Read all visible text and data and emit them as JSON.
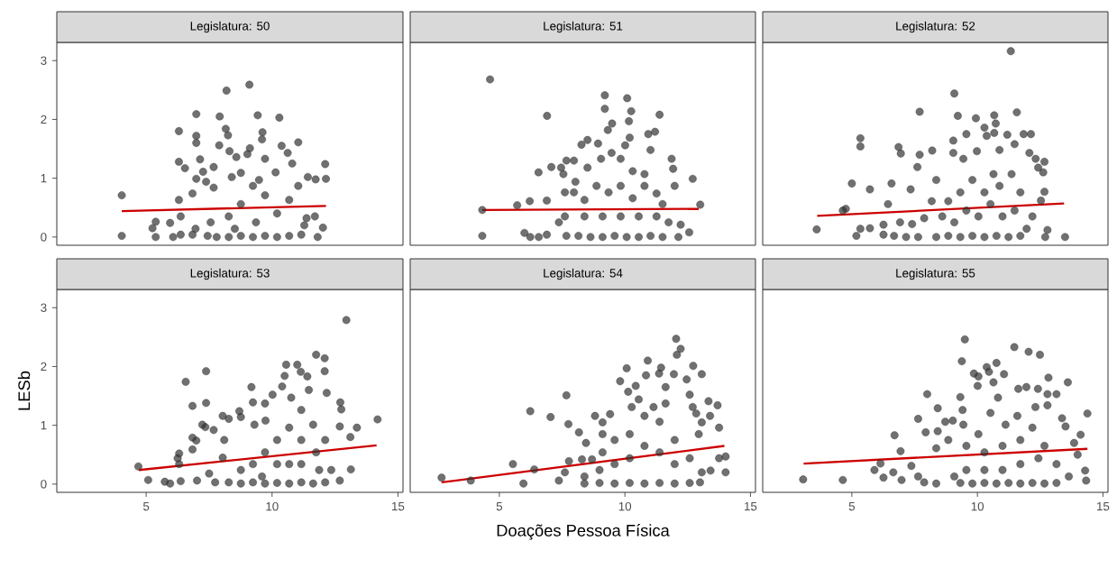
{
  "chart_data": [
    {
      "type": "scatter",
      "title": "Legislatura: 50",
      "xlim": [
        1.45,
        15.2
      ],
      "ylim": [
        -0.14,
        3.31
      ],
      "xticks": [
        5,
        10,
        15
      ],
      "yticks": [
        0,
        1,
        2,
        3
      ],
      "tick_labels": "y",
      "series": [
        {
          "type": "scatter",
          "marker": "circle",
          "color": "#333333",
          "x": [
            4.03,
            4.03,
            5.38,
            5.38,
            5.25,
            5.95,
            6.07,
            6.3,
            6.3,
            6.3,
            6.54,
            6.37,
            6.99,
            6.99,
            6.99,
            6.99,
            6.84,
            7.14,
            7.26,
            7.38,
            7.68,
            7.68,
            7.92,
            7.9,
            8.19,
            8.16,
            8.25,
            8.31,
            8.58,
            8.4,
            8.76,
            9.1,
            9.02,
            9.12,
            9.43,
            9.62,
            9.6,
            9.72,
            9.48,
            10.14,
            10.29,
            10.38,
            10.62,
            11.04,
            10.8,
            11.42,
            11.73,
            12.11,
            12.14,
            12.02,
            11.81,
            11.7,
            11.37,
            11.04,
            10.68,
            10.2,
            9.72,
            9.24,
            8.76,
            8.28,
            7.56,
            6.96,
            7.44,
            7.8,
            8.28,
            8.76,
            9.24,
            9.72,
            10.2,
            10.68,
            11.16,
            11.28,
            9.36,
            8.52,
            6.84,
            6.37
          ],
          "values": [
            0.71,
            0.02,
            0.26,
            0,
            0.15,
            0.24,
            0,
            1.8,
            1.28,
            0.63,
            1.17,
            0.35,
            2.09,
            1.72,
            1.6,
            0.99,
            0.74,
            1.32,
            1.11,
            0.94,
            1.19,
            0.84,
            2.05,
            1.56,
            2.49,
            1.84,
            1.73,
            1.46,
            1.36,
            1.02,
            1.09,
            2.59,
            1.41,
            1.51,
            2.07,
            1.78,
            1.66,
            1.33,
            0.97,
            1.1,
            2.03,
            1.55,
            1.43,
            1.61,
            1.25,
            1.02,
            0.98,
            1.24,
            0.99,
            0.16,
            0,
            0.35,
            0.32,
            0.87,
            0.63,
            0.4,
            0.71,
            0.87,
            0.56,
            0.35,
            0.25,
            0.14,
            0.02,
            0,
            0,
            0.02,
            0,
            0.02,
            0,
            0.02,
            0.04,
            0.2,
            0.25,
            0.14,
            0.04,
            0.04
          ]
        },
        {
          "type": "line",
          "color": "#cc0000",
          "x": [
            4.03,
            12.14
          ],
          "values": [
            0.44,
            0.53
          ]
        }
      ]
    },
    {
      "type": "scatter",
      "title": "Legislatura: 51",
      "xlim": [
        1.45,
        15.2
      ],
      "ylim": [
        -0.14,
        3.31
      ],
      "xticks": [
        5,
        10,
        15
      ],
      "yticks": [
        0,
        1,
        2,
        3
      ],
      "tick_labels": false,
      "series": [
        {
          "type": "scatter",
          "marker": "circle",
          "color": "#333333",
          "x": [
            4.63,
            4.32,
            4.32,
            6.9,
            6.56,
            5.71,
            6.21,
            6.0,
            6.23,
            6.89,
            7.07,
            7.46,
            7.67,
            7.97,
            8.27,
            8.51,
            8.93,
            9.2,
            9.2,
            9.49,
            9.32,
            10.09,
            10.25,
            10.16,
            10.19,
            10.01,
            11.38,
            11.2,
            10.93,
            11.02,
            11.86,
            11.92,
            12.7,
            13.0,
            12.56,
            12.13,
            12.22,
            11.74,
            11.98,
            11.5,
            11.26,
            10.78,
            10.31,
            9.83,
            9.47,
            9.05,
            8.51,
            8.03,
            7.61,
            7.55,
            7.97,
            8.39,
            8.87,
            9.35,
            9.83,
            10.31,
            10.78,
            11.26,
            10.55,
            9.83,
            9.11,
            8.39,
            7.61,
            7.37,
            7.67,
            8.15,
            8.63,
            9.11,
            9.59,
            10.07,
            10.55,
            11.02,
            11.5,
            6.57,
            6.89
          ],
          "values": [
            2.68,
            0.46,
            0.02,
            2.06,
            1.1,
            0.54,
            0.61,
            0.07,
            0,
            0.62,
            1.19,
            1.18,
            1.3,
            1.3,
            1.57,
            1.65,
            1.59,
            2.41,
            2.18,
            1.93,
            1.82,
            2.36,
            2.14,
            1.97,
            1.69,
            1.56,
            2.08,
            1.79,
            1.75,
            1.48,
            1.33,
            1.16,
            0.99,
            0.55,
            0.08,
            0,
            0.21,
            0.25,
            0.87,
            0.56,
            0.74,
            1.07,
            1.12,
            1.33,
            1.43,
            1.33,
            1.18,
            0.94,
            0.76,
            1.07,
            0.76,
            0.63,
            0.87,
            0.76,
            0.87,
            0.66,
            0.87,
            0.35,
            0.35,
            0.35,
            0.35,
            0.35,
            0.35,
            0.25,
            0.02,
            0.02,
            0,
            0,
            0.02,
            0,
            0,
            0.02,
            0,
            0,
            0.04
          ]
        },
        {
          "type": "line",
          "color": "#cc0000",
          "x": [
            4.32,
            12.94
          ],
          "values": [
            0.46,
            0.48
          ]
        }
      ]
    },
    {
      "type": "scatter",
      "title": "Legislatura: 52",
      "xlim": [
        1.45,
        15.2
      ],
      "ylim": [
        -0.14,
        3.31
      ],
      "xticks": [
        5,
        10,
        15
      ],
      "yticks": [
        0,
        1,
        2,
        3
      ],
      "tick_labels": false,
      "series": [
        {
          "type": "scatter",
          "marker": "circle",
          "color": "#333333",
          "x": [
            3.6,
            4.76,
            4.64,
            5.0,
            5.34,
            5.34,
            5.72,
            5.18,
            5.34,
            5.72,
            6.26,
            6.26,
            6.44,
            6.58,
            6.86,
            6.95,
            7.34,
            7.7,
            7.7,
            7.61,
            8.2,
            7.4,
            7.64,
            7.88,
            8.36,
            8.18,
            9.08,
            9.04,
            9.04,
            9.22,
            9.56,
            9.44,
            9.94,
            10.28,
            10.37,
            9.98,
            10.67,
            10.73,
            10.67,
            10.88,
            11.19,
            11.33,
            11.57,
            11.48,
            11.84,
            12.13,
            12.07,
            12.32,
            12.67,
            12.42,
            12.62,
            12.67,
            12.53,
            12.79,
            13.49,
            12.7,
            12.19,
            11.71,
            11.36,
            10.88,
            10.64,
            10.28,
            9.8,
            9.32,
            8.84,
            8.6,
            9.08,
            9.56,
            10.04,
            10.52,
            11.0,
            11.48,
            11.96,
            8.36,
            8.84,
            9.32,
            9.8,
            10.28,
            10.76,
            11.24,
            11.71,
            6.68,
            7.16,
            6.92
          ],
          "values": [
            0.13,
            0.48,
            0.45,
            0.91,
            1.68,
            1.54,
            0.81,
            0.02,
            0.14,
            0.15,
            0.21,
            0.04,
            0.56,
            0.91,
            1.53,
            1.42,
            0.81,
            2.13,
            1.4,
            1.19,
            1.47,
            0.22,
            0,
            0.32,
            0.97,
            0.61,
            2.44,
            1.64,
            1.43,
            2.06,
            1.75,
            1.33,
            2.02,
            1.86,
            1.72,
            1.46,
            2.07,
            1.93,
            1.77,
            1.48,
            1.74,
            3.16,
            2.12,
            1.58,
            1.75,
            1.75,
            1.43,
            1.33,
            1.28,
            1.18,
            1.1,
            0.77,
            0.62,
            0.12,
            0,
            0,
            0.35,
            0.76,
            1.07,
            0.87,
            1.07,
            0.76,
            0.97,
            0.76,
            0.61,
            0.35,
            0.25,
            0.45,
            0.35,
            0.56,
            0.35,
            0.45,
            0.14,
            0,
            0.02,
            0,
            0.02,
            0,
            0.02,
            0,
            0.02,
            0.02,
            0,
            0.25
          ]
        },
        {
          "type": "line",
          "color": "#cc0000",
          "x": [
            3.62,
            13.45
          ],
          "values": [
            0.36,
            0.57
          ]
        }
      ]
    },
    {
      "type": "scatter",
      "title": "Legislatura: 53",
      "ylabel": "LESb",
      "xlim": [
        1.45,
        15.2
      ],
      "ylim": [
        -0.14,
        3.31
      ],
      "xticks": [
        5,
        10,
        15
      ],
      "yticks": [
        0,
        1,
        2,
        3
      ],
      "series": [
        {
          "type": "scatter",
          "marker": "circle",
          "color": "#333333",
          "x": [
            4.69,
            5.08,
            5.74,
            5.95,
            6.37,
            6.31,
            6.31,
            6.25,
            6.57,
            6.84,
            6.84,
            6.84,
            6.99,
            7.02,
            7.23,
            7.38,
            7.38,
            7.35,
            7.68,
            7.5,
            7.74,
            8.04,
            8.1,
            8.04,
            8.28,
            8.7,
            8.76,
            9.18,
            9.24,
            9.3,
            9.72,
            9.74,
            10.02,
            10.4,
            10.56,
            10.5,
            11.0,
            10.76,
            11.14,
            11.4,
            11.46,
            11.75,
            12.09,
            12.09,
            12.17,
            12.95,
            12.71,
            12.75,
            12.69,
            13.37,
            13.11,
            14.19,
            13.13,
            12.69,
            12.35,
            12.11,
            11.63,
            11.16,
            11.75,
            11.16,
            10.68,
            10.2,
            9.72,
            9.24,
            8.76,
            10.68,
            11.16,
            11.87,
            10.2,
            8.28,
            8.76,
            9.24,
            9.72,
            10.2,
            10.68,
            11.16,
            11.63,
            12.11,
            9.6
          ],
          "values": [
            0.3,
            0.07,
            0.04,
            0.01,
            0.05,
            0.52,
            0.34,
            0.44,
            1.74,
            1.33,
            0.79,
            0.59,
            0.74,
            0.06,
            1.01,
            1.92,
            1.38,
            0.97,
            0.92,
            0.18,
            0.03,
            1.16,
            0.75,
            0.45,
            1.11,
            1.24,
            1.14,
            1.65,
            1.39,
            1.01,
            1.37,
            1.08,
            1.52,
            1.66,
            2.03,
            1.84,
            2.03,
            1.47,
            1.91,
            1.83,
            1.6,
            2.2,
            2.14,
            1.92,
            1.55,
            2.79,
            1.39,
            1.27,
            0.98,
            0.96,
            0.8,
            1.1,
            0.25,
            0.06,
            0.24,
            0.75,
            1.01,
            1.26,
            0.54,
            0.75,
            0.96,
            0.75,
            0.54,
            0.34,
            0.24,
            0.34,
            0.34,
            0.24,
            0.34,
            0.03,
            0.01,
            0.03,
            0.01,
            0.02,
            0.01,
            0.03,
            0.01,
            0.03,
            0.13
          ]
        },
        {
          "type": "line",
          "color": "#cc0000",
          "x": [
            4.71,
            14.15
          ],
          "values": [
            0.24,
            0.66
          ]
        }
      ]
    },
    {
      "type": "scatter",
      "title": "Legislatura: 54",
      "xlabel": "Doações Pessoa Física",
      "xlim": [
        1.45,
        15.2
      ],
      "ylim": [
        -0.14,
        3.31
      ],
      "xticks": [
        5,
        10,
        15
      ],
      "yticks": [
        0,
        1,
        2,
        3
      ],
      "tick_labels": "x",
      "series": [
        {
          "type": "scatter",
          "marker": "circle",
          "color": "#333333",
          "x": [
            2.7,
            3.86,
            5.54,
            5.96,
            6.23,
            6.39,
            7.04,
            7.37,
            7.67,
            7.75,
            7.61,
            7.77,
            8.17,
            8.45,
            8.29,
            8.69,
            8.81,
            9.11,
            9.11,
            9.41,
            9.81,
            10.07,
            10.13,
            10.27,
            10.43,
            10.55,
            10.91,
            10.84,
            11.14,
            11.44,
            11.36,
            11.62,
            11.62,
            11.95,
            12.04,
            12.22,
            12.07,
            12.46,
            12.72,
            13.06,
            12.58,
            12.7,
            12.84,
            13.06,
            13.33,
            13.69,
            13.39,
            12.94,
            13.75,
            13.75,
            14.01,
            14.01,
            13.41,
            13.06,
            12.58,
            11.98,
            11.38,
            10.78,
            10.19,
            9.59,
            9.11,
            11.98,
            11.38,
            10.78,
            10.19,
            9.59,
            8.99,
            8.39,
            8.39,
            8.99,
            9.59,
            10.19,
            10.78,
            11.38,
            11.98,
            12.58,
            12.99
          ],
          "values": [
            0.11,
            0.06,
            0.34,
            0.01,
            1.24,
            0.25,
            1.14,
            0.06,
            1.51,
            1.02,
            0.2,
            0.39,
            0.88,
            0.7,
            0.42,
            0.42,
            1.16,
            1.05,
            0.85,
            1.19,
            1.75,
            1.97,
            1.57,
            1.31,
            1.67,
            1.44,
            2.1,
            1.85,
            1.31,
            1.98,
            1.88,
            1.65,
            1.37,
            1.87,
            2.47,
            2.3,
            2.2,
            1.78,
            2.01,
            1.87,
            1.52,
            1.31,
            1.2,
            1.05,
            1.41,
            1.34,
            1.16,
            0.85,
            0.96,
            0.44,
            0.47,
            0.2,
            0.23,
            0.2,
            0.44,
            0.75,
            1.06,
            1.16,
            0.85,
            0.75,
            0.54,
            0.34,
            0.54,
            0.65,
            0.44,
            0.34,
            0.24,
            0.13,
            0.01,
            0.02,
            0.01,
            0.02,
            0.01,
            0.02,
            0.01,
            0.02,
            0.03
          ]
        },
        {
          "type": "line",
          "color": "#cc0000",
          "x": [
            2.7,
            13.96
          ],
          "values": [
            0.03,
            0.65
          ]
        }
      ]
    },
    {
      "type": "scatter",
      "title": "Legislatura: 55",
      "xlim": [
        1.45,
        15.2
      ],
      "ylim": [
        -0.14,
        3.31
      ],
      "xticks": [
        5,
        10,
        15
      ],
      "yticks": [
        0,
        1,
        2,
        3
      ],
      "tick_labels": "x",
      "series": [
        {
          "type": "scatter",
          "marker": "circle",
          "color": "#333333",
          "x": [
            3.06,
            4.64,
            5.9,
            6.14,
            6.26,
            6.65,
            6.7,
            6.94,
            6.98,
            7.37,
            7.64,
            7.64,
            7.94,
            8.0,
            8.42,
            8.42,
            8.36,
            8.72,
            9.02,
            8.84,
            9.32,
            9.38,
            9.5,
            9.41,
            9.44,
            9.86,
            10.01,
            10.04,
            10.37,
            10.76,
            10.46,
            10.64,
            10.82,
            11.06,
            11.47,
            11.63,
            11.95,
            12.04,
            12.49,
            12.41,
            12.79,
            12.83,
            13.15,
            13.6,
            12.79,
            12.31,
            13.37,
            13.51,
            14.11,
            14.38,
            13.85,
            13.99,
            14.29,
            14.33,
            13.64,
            13.15,
            12.67,
            12.19,
            11.59,
            11.12,
            10.52,
            10.04,
            9.56,
            10.28,
            11.0,
            11.71,
            12.43,
            11.71,
            11.0,
            10.28,
            9.56,
            9.08,
            7.88,
            8.36,
            9.32,
            9.8,
            10.28,
            10.76,
            11.24,
            11.71,
            12.19,
            12.67,
            13.15
          ],
          "values": [
            0.08,
            0.07,
            0.24,
            0.35,
            0.11,
            0.2,
            0.83,
            0.56,
            0.07,
            0.31,
            1.11,
            0.13,
            0.88,
            1.53,
            1.29,
            0.9,
            0.61,
            1.06,
            1.08,
            0.75,
            1.48,
            2.09,
            2.46,
            1.26,
            1.01,
            1.88,
            1.67,
            1.83,
            1.99,
            2.06,
            1.91,
            1.73,
            1.47,
            1.87,
            2.33,
            1.62,
            1.65,
            2.25,
            2.2,
            1.62,
            1.53,
            1.81,
            1.53,
            1.73,
            1.34,
            1.31,
            1.12,
            0.98,
            0.84,
            1.2,
            0.7,
            0.5,
            0.23,
            0.06,
            0.13,
            0.34,
            0.65,
            0.96,
            1.16,
            1.01,
            1.21,
            0.85,
            0.65,
            0.54,
            0.65,
            0.75,
            0.44,
            0.34,
            0.24,
            0.24,
            0.24,
            0.13,
            0.03,
            0.01,
            0.02,
            0.01,
            0.02,
            0.01,
            0.02,
            0.01,
            0.02,
            0.01,
            0.02
          ]
        },
        {
          "type": "line",
          "color": "#cc0000",
          "x": [
            3.08,
            14.38
          ],
          "values": [
            0.35,
            0.6
          ]
        }
      ]
    }
  ]
}
